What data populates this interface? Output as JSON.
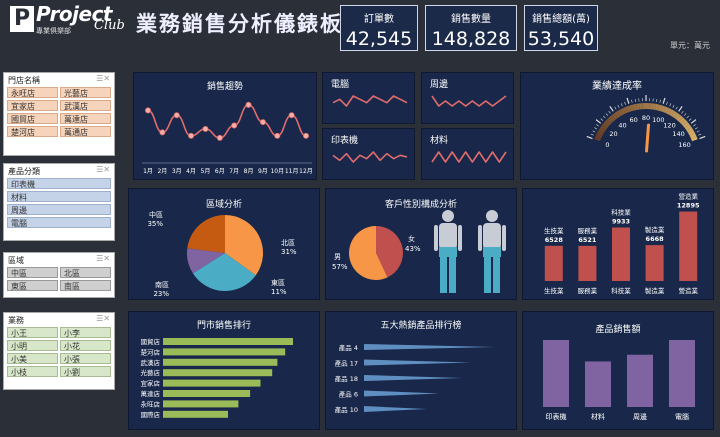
{
  "header": {
    "logo_text": "Project",
    "logo_club": "Club",
    "logo_sub": "專業俱樂部",
    "title": "業務銷售分析儀錶板",
    "unit": "單元：萬元"
  },
  "kpis": [
    {
      "label": "訂單數",
      "value": "42,545"
    },
    {
      "label": "銷售數量",
      "value": "148,828"
    },
    {
      "label": "銷售總額(萬)",
      "value": "53,540"
    }
  ],
  "slicers": {
    "store": {
      "title": "門店名稱",
      "items": [
        "永旺店",
        "光藝店",
        "宜家店",
        "武漢店",
        "國貿店",
        "萬達店",
        "楚河店",
        "萬通店"
      ]
    },
    "category": {
      "title": "產品分類",
      "items": [
        "印表機",
        "材料",
        "周邊",
        "電腦"
      ]
    },
    "region": {
      "title": "區域",
      "items": [
        "中區",
        "北區",
        "東區",
        "南區"
      ]
    },
    "sales": {
      "title": "業務",
      "items": [
        "小王",
        "小李",
        "小明",
        "小花",
        "小美",
        "小張",
        "小枝",
        "小劉"
      ]
    }
  },
  "colors": {
    "bg": "#2b2f38",
    "panel": "#19284a",
    "trend": "#e06c6c",
    "bar_red": "#c0504d",
    "bar_green": "#9bbb59",
    "bar_purple": "#8064a2"
  },
  "trend": {
    "title": "銷售趨勢",
    "months": [
      "1月",
      "2月",
      "3月",
      "4月",
      "5月",
      "6月",
      "7月",
      "8月",
      "9月",
      "10月",
      "11月",
      "12月"
    ],
    "values": [
      62,
      30,
      55,
      25,
      35,
      22,
      40,
      70,
      45,
      25,
      55,
      25
    ]
  },
  "sparks": [
    {
      "label": "電腦",
      "values": [
        4,
        5,
        3,
        6,
        5,
        4,
        6,
        5,
        4,
        6,
        5,
        4
      ]
    },
    {
      "label": "周邊",
      "values": [
        5,
        3,
        4,
        3,
        4,
        3,
        4,
        3,
        4,
        3,
        4,
        5
      ]
    },
    {
      "label": "印表機",
      "values": [
        6,
        3,
        7,
        2,
        6,
        4,
        8,
        3,
        7,
        4,
        6,
        5
      ]
    },
    {
      "label": "材料",
      "values": [
        4,
        5,
        4,
        5,
        4,
        5,
        4,
        5,
        4,
        5,
        4,
        5
      ]
    }
  ],
  "gauge": {
    "title": "業績達成率",
    "min": 0,
    "max": 160,
    "ticks": [
      "0",
      "20",
      "40",
      "60",
      "80",
      "100",
      "120",
      "140",
      "160"
    ],
    "value": 85
  },
  "region_pie": {
    "title": "區域分析",
    "slices": [
      {
        "name": "中區",
        "pct": "35%",
        "value": 35,
        "color": "#f79646"
      },
      {
        "name": "北區",
        "pct": "31%",
        "value": 31,
        "color": "#4bacc6"
      },
      {
        "name": "東區",
        "pct": "11%",
        "value": 11,
        "color": "#8064a2"
      },
      {
        "name": "南區",
        "pct": "23%",
        "value": 23,
        "color": "#c55a11"
      }
    ]
  },
  "gender": {
    "title": "客戶性別構成分析",
    "slices": [
      {
        "name": "女",
        "pct": "43%",
        "value": 43,
        "color": "#c0504d"
      },
      {
        "name": "男",
        "pct": "57%",
        "value": 57,
        "color": "#f79646"
      }
    ]
  },
  "industry": {
    "categories": [
      "生技業",
      "服務業",
      "科技業",
      "製造業",
      "營造業"
    ],
    "values": [
      6528,
      6521,
      9933,
      6668,
      12895
    ],
    "value_labels": [
      "6528",
      "6521",
      "9933",
      "6668",
      "12895"
    ]
  },
  "store_rank": {
    "title": "門市銷售排行",
    "stores": [
      "國貿店",
      "楚河店",
      "武漢店",
      "光藝店",
      "宜家店",
      "萬達店",
      "永旺店",
      "國際店"
    ],
    "values": [
      100,
      94,
      88,
      84,
      75,
      67,
      58,
      50
    ]
  },
  "top5": {
    "title": "五大熱銷產品排行榜",
    "products": [
      "產品 4",
      "產品 17",
      "產品 18",
      "產品 6",
      "產品 10"
    ],
    "values": [
      100,
      82,
      75,
      58,
      48
    ]
  },
  "product_sales": {
    "title": "產品銷售額",
    "categories": [
      "印表機",
      "材料",
      "周邊",
      "電腦"
    ],
    "values": [
      100,
      68,
      78,
      100
    ]
  }
}
